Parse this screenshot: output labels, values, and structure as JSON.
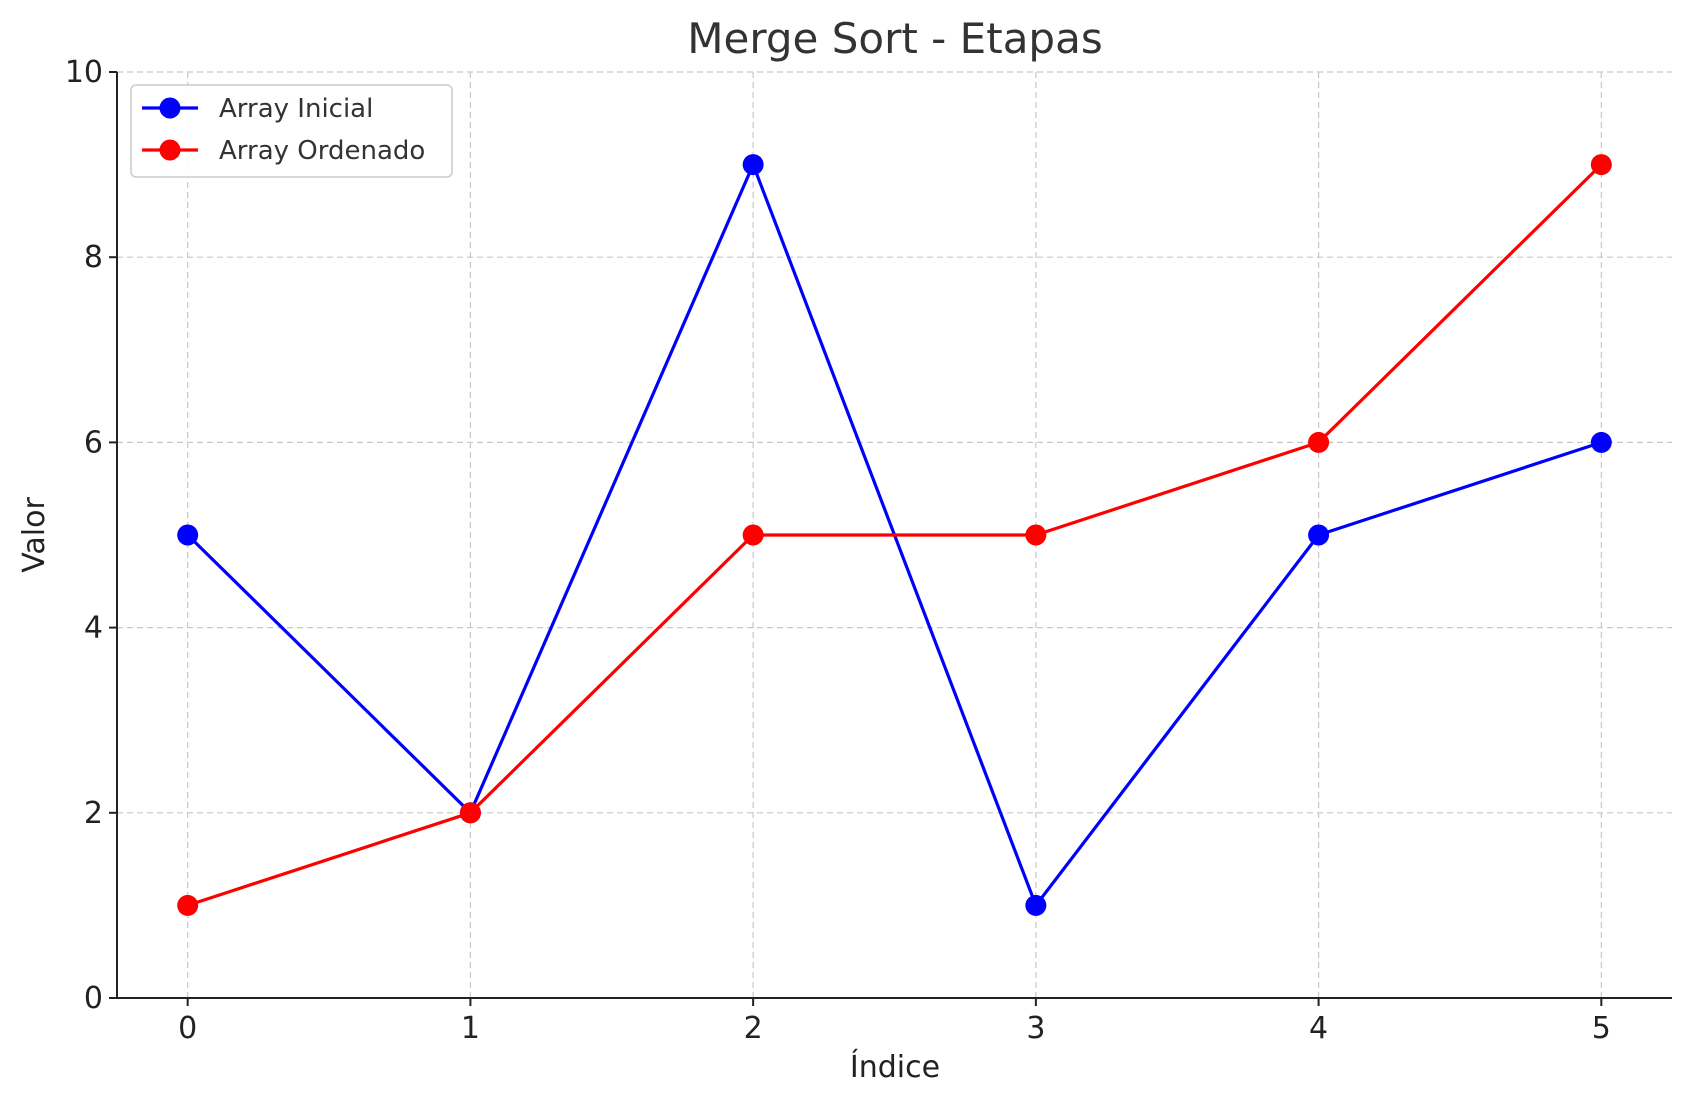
{
  "chart_data": {
    "type": "line",
    "title": "Merge Sort - Etapas",
    "xlabel": "Índice",
    "ylabel": "Valor",
    "x": [
      0,
      1,
      2,
      3,
      4,
      5
    ],
    "xlim": [
      -0.25,
      5.25
    ],
    "ylim": [
      0,
      10
    ],
    "xticks": [
      "0",
      "1",
      "2",
      "3",
      "4",
      "5"
    ],
    "yticks": [
      "0",
      "2",
      "4",
      "6",
      "8",
      "10"
    ],
    "grid": true,
    "legend_position": "top-left",
    "series": [
      {
        "name": "Array Inicial",
        "color": "#0000ff",
        "marker": "circle",
        "values": [
          5,
          2,
          9,
          1,
          5,
          6
        ]
      },
      {
        "name": "Array Ordenado",
        "color": "#ff0000",
        "marker": "circle",
        "values": [
          1,
          2,
          5,
          5,
          6,
          9
        ]
      }
    ]
  }
}
